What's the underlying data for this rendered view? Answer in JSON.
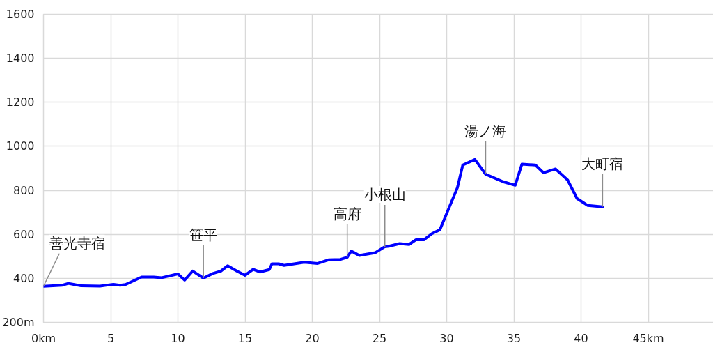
{
  "chart_data": {
    "type": "line",
    "xlim": [
      0,
      50
    ],
    "ylim": [
      200,
      1600
    ],
    "xticks": [
      {
        "value": 0,
        "label": "0km"
      },
      5,
      10,
      15,
      20,
      25,
      30,
      35,
      40,
      {
        "value": 45,
        "label": "45km"
      }
    ],
    "yticks": [
      {
        "value": 200,
        "label": "200m"
      },
      400,
      600,
      800,
      1000,
      1200,
      1400,
      1600
    ],
    "grid": true,
    "x": [
      0,
      1.4,
      1.85,
      2.3,
      2.8,
      4.2,
      5.2,
      5.7,
      6.1,
      7.3,
      8.2,
      8.8,
      10.0,
      10.5,
      11.1,
      11.9,
      12.6,
      13.2,
      13.7,
      14.4,
      15.0,
      15.6,
      16.1,
      16.8,
      17.0,
      17.5,
      17.9,
      19.4,
      20.4,
      21.2,
      22.1,
      22.6,
      22.9,
      23.5,
      24.7,
      25.4,
      25.7,
      26.5,
      27.2,
      27.7,
      28.3,
      28.9,
      29.5,
      30.8,
      31.2,
      32.1,
      32.9,
      34.2,
      35.1,
      35.6,
      36.6,
      37.2,
      38.1,
      39.0,
      39.7,
      40.5,
      41.6
    ],
    "series": [
      {
        "color": "#0000ff",
        "values": [
          364,
          369,
          377,
          372,
          366,
          365,
          373,
          369,
          372,
          406,
          406,
          403,
          420,
          392,
          433,
          401,
          422,
          433,
          457,
          433,
          414,
          441,
          429,
          440,
          466,
          466,
          459,
          473,
          468,
          484,
          486,
          496,
          524,
          504,
          517,
          544,
          546,
          558,
          554,
          575,
          575,
          603,
          621,
          812,
          915,
          940,
          873,
          839,
          823,
          919,
          915,
          880,
          897,
          847,
          763,
          731,
          725
        ]
      }
    ],
    "annotations": [
      {
        "text": "善光寺宿",
        "x": 0,
        "y": 364
      },
      {
        "text": "笹平",
        "x": 11.9,
        "y": 401
      },
      {
        "text": "高府",
        "x": 22.6,
        "y": 496
      },
      {
        "text": "小根山",
        "x": 25.4,
        "y": 544
      },
      {
        "text": "湯ノ海",
        "x": 32.9,
        "y": 873
      },
      {
        "text": "大町宿",
        "x": 41.6,
        "y": 725
      }
    ]
  }
}
